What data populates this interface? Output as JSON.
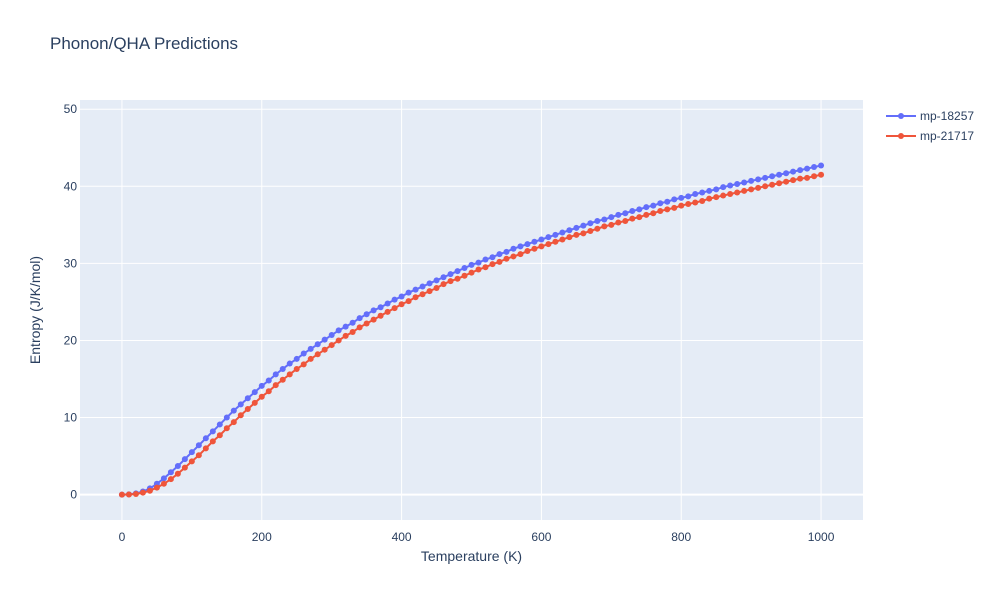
{
  "chart_data": {
    "type": "line",
    "title": "Phonon/QHA Predictions",
    "xlabel": "Temperature (K)",
    "ylabel": "Entropy (J/K/mol)",
    "xlim": [
      -60,
      1060
    ],
    "ylim": [
      -3.3,
      51.2
    ],
    "xticks": [
      0,
      200,
      400,
      600,
      800,
      1000
    ],
    "yticks": [
      0,
      10,
      20,
      30,
      40,
      50
    ],
    "grid": true,
    "legend_position": "top-right",
    "plot_background": "#e5ecf6",
    "x": [
      0,
      10,
      20,
      30,
      40,
      50,
      60,
      70,
      80,
      90,
      100,
      110,
      120,
      130,
      140,
      150,
      160,
      170,
      180,
      190,
      200,
      210,
      220,
      230,
      240,
      250,
      260,
      270,
      280,
      290,
      300,
      310,
      320,
      330,
      340,
      350,
      360,
      370,
      380,
      390,
      400,
      410,
      420,
      430,
      440,
      450,
      460,
      470,
      480,
      490,
      500,
      510,
      520,
      530,
      540,
      550,
      560,
      570,
      580,
      590,
      600,
      610,
      620,
      630,
      640,
      650,
      660,
      670,
      680,
      690,
      700,
      710,
      720,
      730,
      740,
      750,
      760,
      770,
      780,
      790,
      800,
      810,
      820,
      830,
      840,
      850,
      860,
      870,
      880,
      890,
      900,
      910,
      920,
      930,
      940,
      950,
      960,
      970,
      980,
      990,
      1000
    ],
    "series": [
      {
        "name": "mp-18257",
        "color": "#636efa",
        "values": [
          0.0,
          0.02,
          0.15,
          0.4,
          0.8,
          1.4,
          2.1,
          2.9,
          3.7,
          4.6,
          5.5,
          6.4,
          7.3,
          8.2,
          9.1,
          10.0,
          10.9,
          11.7,
          12.5,
          13.3,
          14.1,
          14.8,
          15.6,
          16.3,
          17.0,
          17.6,
          18.3,
          18.9,
          19.5,
          20.1,
          20.7,
          21.3,
          21.8,
          22.3,
          22.9,
          23.4,
          23.9,
          24.3,
          24.8,
          25.3,
          25.7,
          26.2,
          26.6,
          27.0,
          27.4,
          27.8,
          28.2,
          28.6,
          29.0,
          29.4,
          29.8,
          30.1,
          30.5,
          30.8,
          31.2,
          31.5,
          31.9,
          32.2,
          32.5,
          32.8,
          33.1,
          33.4,
          33.7,
          34.0,
          34.3,
          34.6,
          34.9,
          35.2,
          35.5,
          35.7,
          36.0,
          36.3,
          36.5,
          36.8,
          37.0,
          37.3,
          37.5,
          37.8,
          38.0,
          38.3,
          38.5,
          38.7,
          39.0,
          39.2,
          39.4,
          39.6,
          39.9,
          40.1,
          40.3,
          40.5,
          40.7,
          40.9,
          41.1,
          41.3,
          41.5,
          41.7,
          41.9,
          42.1,
          42.3,
          42.5,
          42.7
        ]
      },
      {
        "name": "mp-21717",
        "color": "#ef553b",
        "values": [
          0.0,
          0.01,
          0.08,
          0.25,
          0.5,
          0.9,
          1.4,
          2.0,
          2.7,
          3.5,
          4.3,
          5.1,
          6.0,
          6.9,
          7.7,
          8.6,
          9.4,
          10.3,
          11.1,
          11.9,
          12.7,
          13.4,
          14.2,
          14.9,
          15.6,
          16.3,
          16.9,
          17.6,
          18.2,
          18.8,
          19.4,
          20.0,
          20.6,
          21.1,
          21.7,
          22.2,
          22.7,
          23.2,
          23.7,
          24.2,
          24.7,
          25.1,
          25.6,
          26.0,
          26.4,
          26.8,
          27.3,
          27.7,
          28.0,
          28.4,
          28.8,
          29.2,
          29.5,
          29.9,
          30.2,
          30.6,
          30.9,
          31.2,
          31.6,
          31.9,
          32.2,
          32.5,
          32.8,
          33.1,
          33.4,
          33.7,
          33.9,
          34.2,
          34.5,
          34.8,
          35.0,
          35.3,
          35.5,
          35.8,
          36.0,
          36.3,
          36.5,
          36.8,
          37.0,
          37.2,
          37.5,
          37.7,
          37.9,
          38.1,
          38.4,
          38.6,
          38.8,
          39.0,
          39.2,
          39.4,
          39.6,
          39.8,
          40.0,
          40.2,
          40.4,
          40.6,
          40.8,
          41.0,
          41.1,
          41.3,
          41.5
        ]
      }
    ]
  }
}
